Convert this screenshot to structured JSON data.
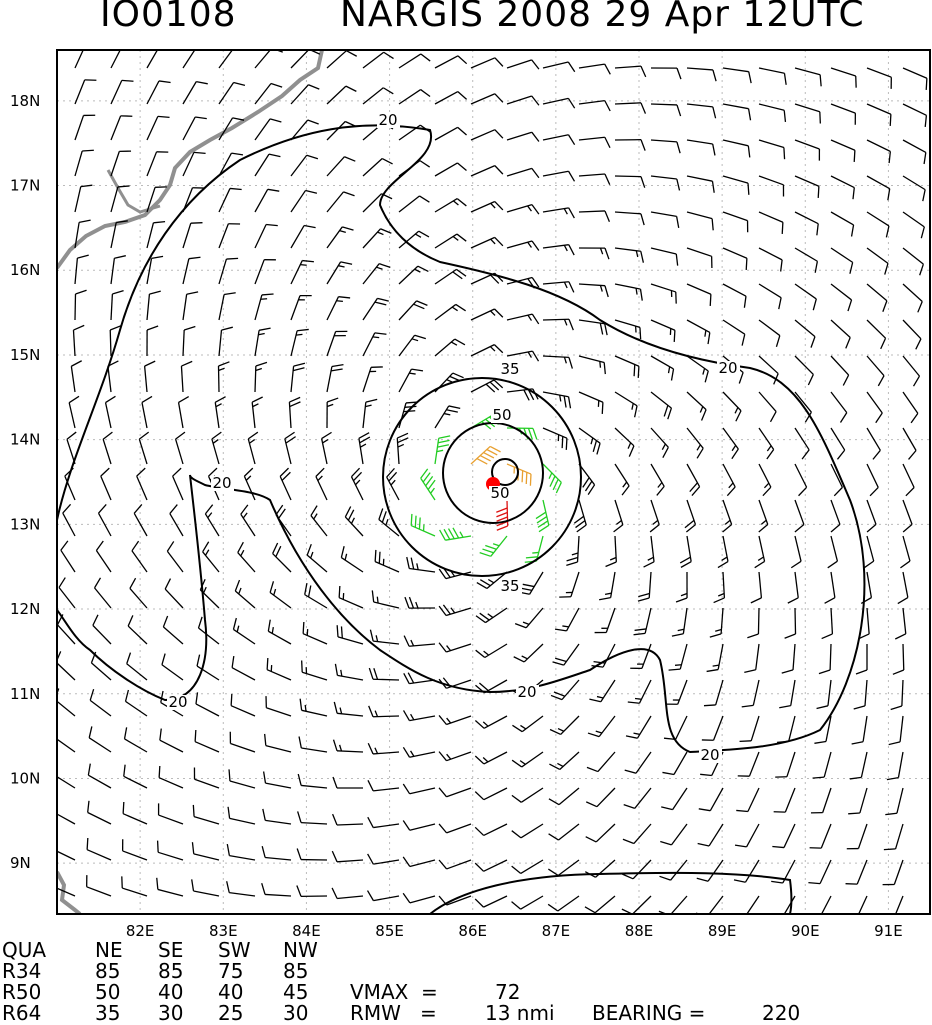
{
  "header": {
    "storm_id": "IO0108",
    "storm_title": "NARGIS 2008 29 Apr 12UTC"
  },
  "map": {
    "lat_labels": [
      "18N",
      "17N",
      "16N",
      "15N",
      "14N",
      "13N",
      "12N",
      "11N",
      "10N",
      "9N"
    ],
    "lon_labels": [
      "82E",
      "83E",
      "84E",
      "85E",
      "86E",
      "87E",
      "88E",
      "89E",
      "90E",
      "91E"
    ],
    "lon_range": [
      81.0,
      91.5
    ],
    "lat_range": [
      8.4,
      18.6
    ],
    "storm_center": {
      "lon": 86.1,
      "lat": 13.4,
      "color": "#ff0000"
    },
    "contour_labels": [
      "20",
      "20",
      "20",
      "20",
      "20",
      "20",
      "35",
      "35",
      "50",
      "50"
    ],
    "colors": {
      "coast": "#909090",
      "barb_weak": "#000000",
      "barb_ts": "#22cc22",
      "barb_50": "#e8a030",
      "barb_64": "#dd1111",
      "contour": "#000000",
      "grid": "#bbbbbb"
    }
  },
  "stats": {
    "header": [
      "QUA",
      "NE",
      "SE",
      "SW",
      "NW"
    ],
    "rows": [
      [
        "R34",
        "85",
        "85",
        "75",
        "85"
      ],
      [
        "R50",
        "50",
        "40",
        "40",
        "45"
      ],
      [
        "R64",
        "35",
        "30",
        "25",
        "30"
      ]
    ],
    "vmax_label": "VMAX  =",
    "vmax_value": "72",
    "rmw_label": "RMW   =",
    "rmw_value": "13 nmi",
    "bearing_label": "BEARING =",
    "bearing_value": "220"
  }
}
